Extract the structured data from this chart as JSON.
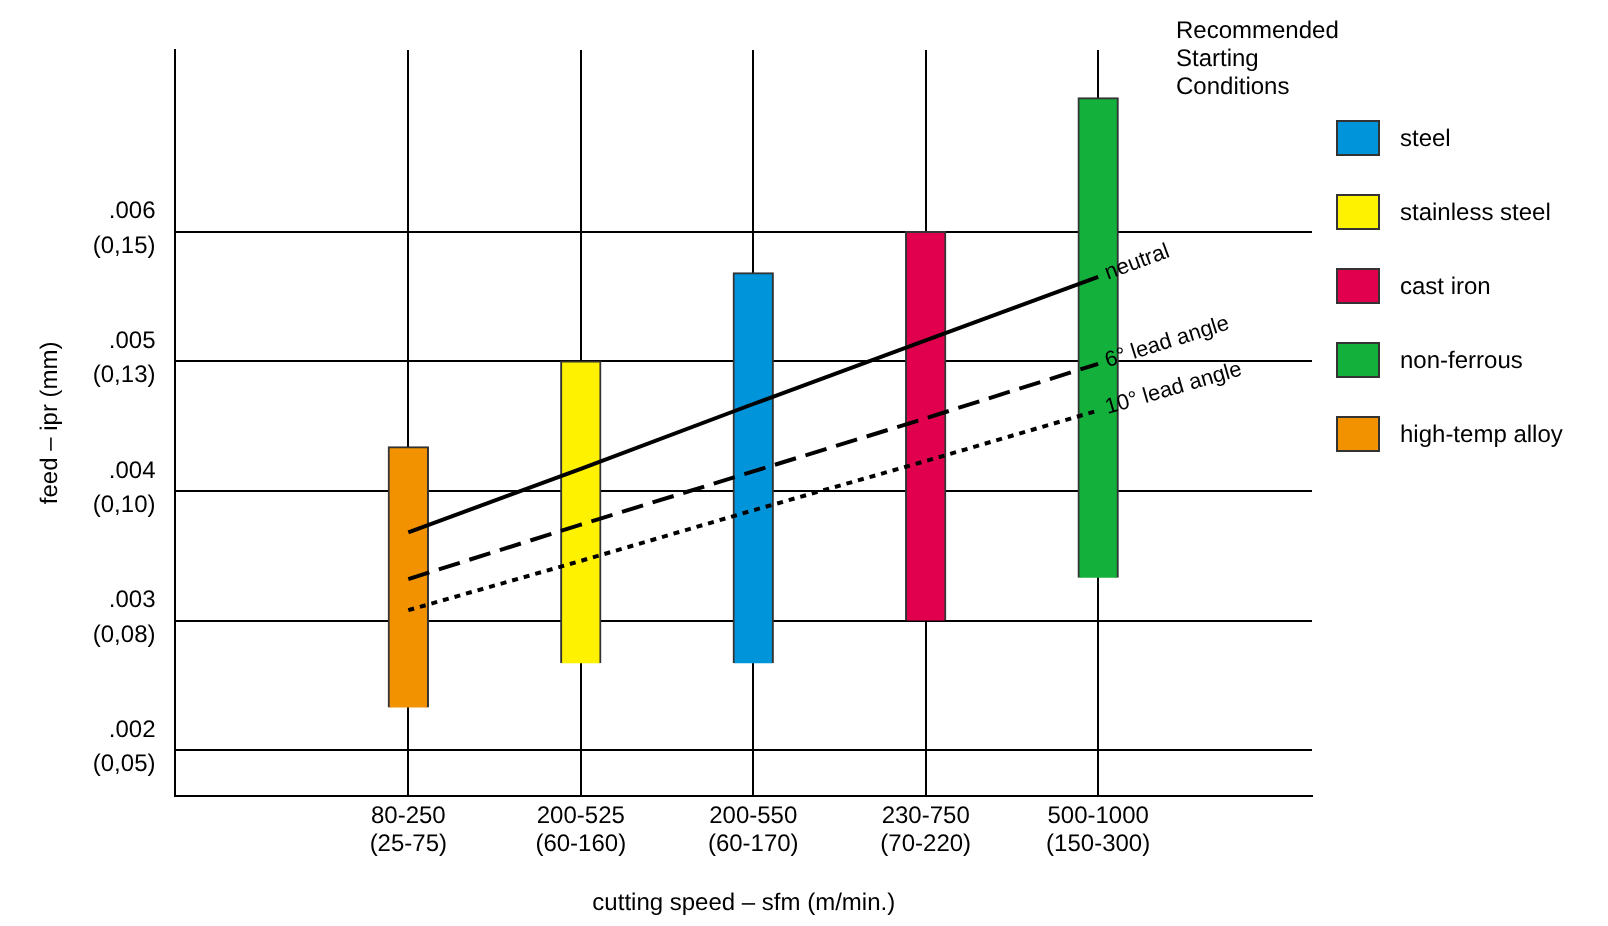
{
  "chart_data": {
    "type": "bar",
    "xlabel": "cutting speed – sfm (m/min.)",
    "ylabel": "feed – ipr (mm)",
    "legend_title": "Recommended\nStarting\nConditions",
    "categories": [
      "80-250\n(25-75)",
      "200-525\n(60-160)",
      "200-550\n(60-170)",
      "230-750\n(70-220)",
      "500-1000\n(150-300)"
    ],
    "ylim": [
      0.04191,
      0.18796
    ],
    "yticks": [
      {
        "value": 0.0508,
        "label": "(0,05)"
      },
      {
        "value": 0.0762,
        "label": "(0,08)"
      },
      {
        "value": 0.1016,
        "label": "(0,10)"
      },
      {
        "value": 0.127,
        "label": "(0,13)"
      },
      {
        "value": 0.1524,
        "label": "(0,15)"
      }
    ],
    "y2lim": [
      0.00165,
      0.0074
    ],
    "y2ticks": [
      {
        "value": 0.002,
        "label": ".002"
      },
      {
        "value": 0.003,
        "label": ".003"
      },
      {
        "value": 0.004,
        "label": ".004"
      },
      {
        "value": 0.005,
        "label": ".005"
      },
      {
        "value": 0.006,
        "label": ".006"
      }
    ],
    "grid": true,
    "legend": "right",
    "series": [
      {
        "name": "steel",
        "color": "#0095da",
        "axis": "y2",
        "values": [
          null,
          null,
          0.00301,
          null,
          null
        ],
        "base": [
          null,
          null,
          0.00267,
          null,
          null
        ]
      },
      {
        "name": "stainless steel",
        "color": "#fff200",
        "axis": "y2",
        "values": [
          null,
          0.00233,
          null,
          null,
          null
        ],
        "base": [
          null,
          0.00267,
          null,
          null,
          null
        ]
      },
      {
        "name": "cast iron",
        "color": "#e0004d",
        "axis": "y2",
        "values": [
          null,
          null,
          null,
          0.003,
          null
        ],
        "base": [
          null,
          null,
          null,
          0.003,
          null
        ]
      },
      {
        "name": "non-ferrous",
        "color": "#13b03b",
        "axis": "y2",
        "values": [
          null,
          null,
          null,
          null,
          0.0037
        ],
        "base": [
          null,
          null,
          null,
          null,
          0.00333
        ]
      },
      {
        "name": "high-temp alloy",
        "color": "#f39200",
        "axis": "y2",
        "values": [
          0.00201,
          null,
          null,
          null,
          null
        ],
        "base": [
          0.00233,
          null,
          null,
          null,
          null
        ]
      },
      {
        "name": "neutral",
        "type": "line",
        "color": "#000000",
        "axis": "y2",
        "line_style": "solid",
        "marker": "none",
        "values": [
          0.00368,
          0.00417,
          0.00467,
          0.00516,
          0.00565
        ]
      },
      {
        "name": "6° lead angle",
        "type": "line",
        "color": "#000000",
        "axis": "y2",
        "line_style": "dashed",
        "marker": "none",
        "values": [
          0.00332,
          0.00374,
          0.00415,
          0.00456,
          0.00498
        ]
      },
      {
        "name": "10° lead angle",
        "type": "line",
        "color": "#000000",
        "axis": "y2",
        "line_style": "dotted",
        "marker": "none",
        "values": [
          0.00308,
          0.00346,
          0.00385,
          0.00423,
          0.00462
        ]
      }
    ]
  }
}
